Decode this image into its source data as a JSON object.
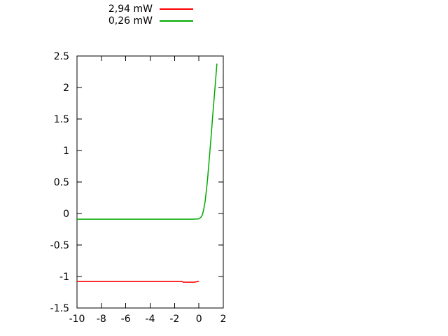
{
  "chart_data": {
    "type": "line",
    "title": "",
    "xlabel": "",
    "ylabel": "",
    "xlim": [
      -10,
      2
    ],
    "ylim": [
      -1.5,
      2.5
    ],
    "grid": false,
    "legend_position": "above-plot-center",
    "background_color": "#ffffff",
    "axis_color": "#000000",
    "x_ticks": {
      "values": [
        -10,
        -8,
        -6,
        -4,
        -2,
        0,
        2
      ],
      "labels": [
        "-10",
        "-8",
        "-6",
        "-4",
        "-2",
        "0",
        "2"
      ]
    },
    "y_ticks": {
      "values": [
        -1.5,
        -1,
        -0.5,
        0,
        0.5,
        1,
        1.5,
        2,
        2.5
      ],
      "labels": [
        "-1.5",
        "-1",
        "-0.5",
        "0",
        "0.5",
        "1",
        "1.5",
        "2",
        "2.5"
      ]
    },
    "series": [
      {
        "name": "2,94 mW",
        "color": "#ff0000",
        "x": [
          -10,
          -8,
          -6,
          -4,
          -2,
          -1.35,
          -1.3,
          -0.35,
          -0.25,
          -0.1,
          0
        ],
        "y": [
          -1.08,
          -1.08,
          -1.08,
          -1.08,
          -1.08,
          -1.08,
          -1.09,
          -1.09,
          -1.085,
          -1.08,
          -1.08
        ]
      },
      {
        "name": "0,26 mW",
        "color": "#00aa00",
        "x": [
          -10,
          -8,
          -6,
          -4,
          -2,
          -1,
          -0.5,
          0,
          0.1,
          0.2,
          0.3,
          0.4,
          0.5,
          0.6,
          0.7,
          0.8,
          0.9,
          1.0,
          1.1,
          1.2,
          1.3,
          1.4,
          1.48
        ],
        "y": [
          -0.09,
          -0.09,
          -0.09,
          -0.09,
          -0.09,
          -0.09,
          -0.09,
          -0.085,
          -0.07,
          -0.05,
          -0.01,
          0.07,
          0.18,
          0.34,
          0.53,
          0.75,
          0.98,
          1.22,
          1.47,
          1.72,
          1.95,
          2.2,
          2.38
        ]
      }
    ]
  }
}
